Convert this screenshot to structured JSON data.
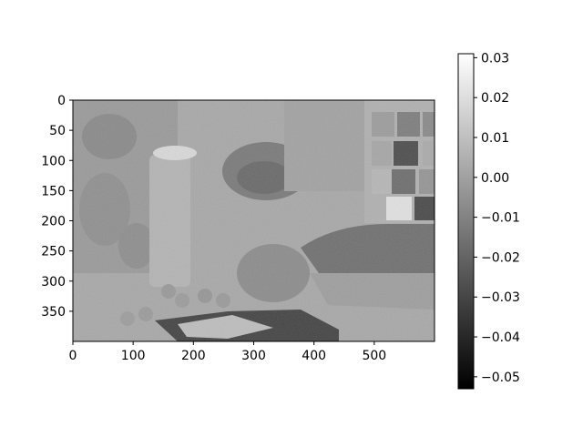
{
  "chart_data": {
    "type": "heatmap",
    "title": "",
    "xlabel": "",
    "ylabel": "",
    "colormap": "gray",
    "image": {
      "width": 600,
      "height": 400,
      "xlim": [
        0,
        600
      ],
      "ylim": [
        400,
        0
      ],
      "description_values": "grayscale difference image; background near 0.00, darkest regions near -0.05"
    },
    "x_ticks": [
      0,
      100,
      200,
      300,
      400,
      500
    ],
    "x_tick_labels": [
      "0",
      "100",
      "200",
      "300",
      "400",
      "500"
    ],
    "y_ticks": [
      0,
      50,
      100,
      150,
      200,
      250,
      300,
      350
    ],
    "y_tick_labels": [
      "0",
      "50",
      "100",
      "150",
      "200",
      "250",
      "300",
      "350"
    ],
    "colorbar": {
      "vmin": -0.053,
      "vmax": 0.031,
      "ticks": [
        0.03,
        0.02,
        0.01,
        0.0,
        -0.01,
        -0.02,
        -0.03,
        -0.04,
        -0.05
      ],
      "tick_labels": [
        "0.03",
        "0.02",
        "0.01",
        "0.00",
        "−0.01",
        "−0.02",
        "−0.03",
        "−0.04",
        "−0.05"
      ]
    }
  }
}
